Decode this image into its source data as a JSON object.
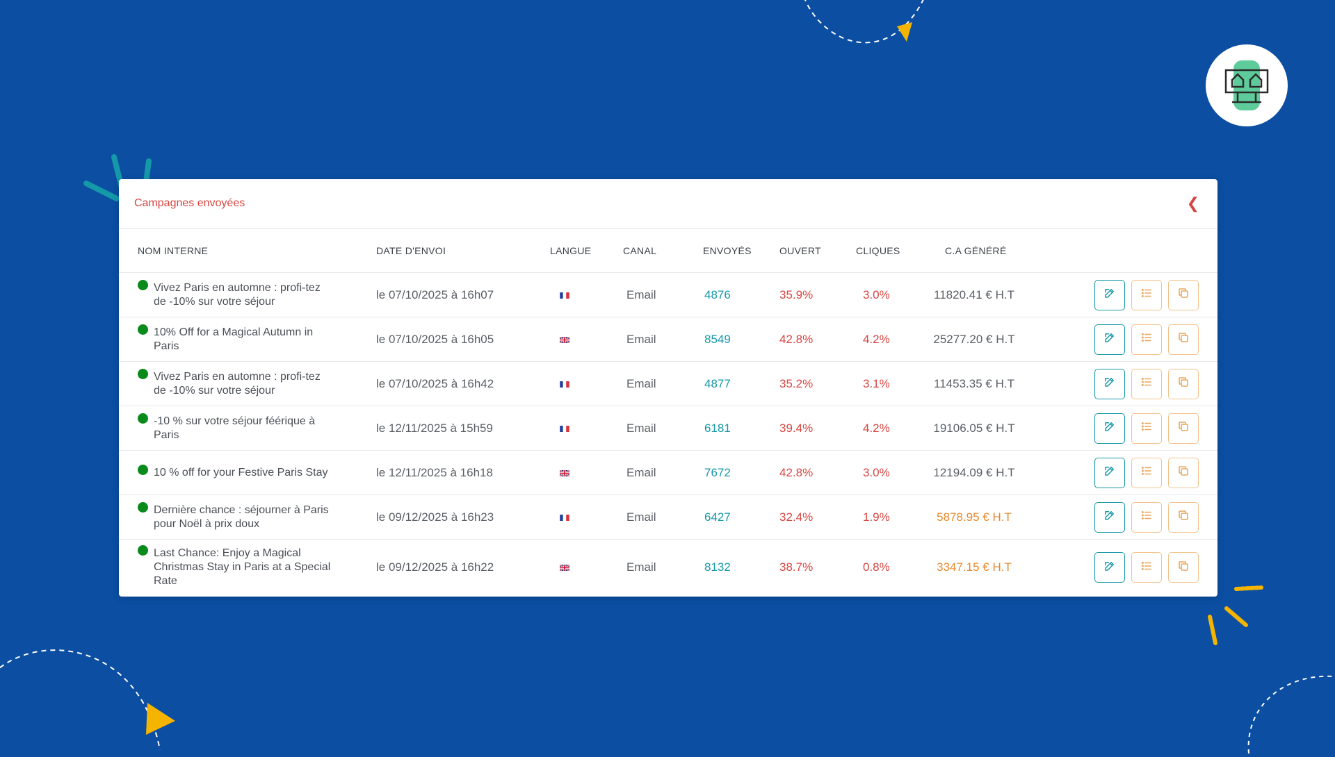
{
  "panel": {
    "title": "Campagnes envoyées",
    "collapse_icon": "chevron-left-icon"
  },
  "table": {
    "columns": [
      "NOM INTERNE",
      "DATE D'ENVOI",
      "LANGUE",
      "CANAL",
      "ENVOYÉS",
      "OUVERT",
      "CLIQUES",
      "C.A GÉNÉRÉ"
    ],
    "rows": [
      {
        "name": "Vivez Paris en automne : profi-tez de -10% sur votre séjour",
        "date": "le 07/10/2025 à 16h07",
        "lang": "fr",
        "canal": "Email",
        "envoyes": "4876",
        "ouvert": "35.9%",
        "cliques": "3.0%",
        "ca": "11820.41 € H.T",
        "ca_status": "normal"
      },
      {
        "name": "10% Off for a Magical Autumn in Paris",
        "date": "le 07/10/2025 à 16h05",
        "lang": "en",
        "canal": "Email",
        "envoyes": "8549",
        "ouvert": "42.8%",
        "cliques": "4.2%",
        "ca": "25277.20 € H.T",
        "ca_status": "normal"
      },
      {
        "name": "Vivez Paris en automne : profi-tez de -10% sur votre séjour",
        "date": "le 07/10/2025 à 16h42",
        "lang": "fr",
        "canal": "Email",
        "envoyes": "4877",
        "ouvert": "35.2%",
        "cliques": "3.1%",
        "ca": "11453.35 € H.T",
        "ca_status": "normal"
      },
      {
        "name": "-10 % sur votre séjour féérique à Paris",
        "date": "le 12/11/2025 à 15h59",
        "lang": "fr",
        "canal": "Email",
        "envoyes": "6181",
        "ouvert": "39.4%",
        "cliques": "4.2%",
        "ca": "19106.05 € H.T",
        "ca_status": "normal"
      },
      {
        "name": "10 % off for your Festive Paris Stay",
        "date": "le 12/11/2025 à 16h18",
        "lang": "en",
        "canal": "Email",
        "envoyes": "7672",
        "ouvert": "42.8%",
        "cliques": "3.0%",
        "ca": "12194.09 € H.T",
        "ca_status": "normal"
      },
      {
        "name": "Dernière chance : séjourner à Paris pour Noël à prix doux",
        "date": "le 09/12/2025 à 16h23",
        "lang": "fr",
        "canal": "Email",
        "envoyes": "6427",
        "ouvert": "32.4%",
        "cliques": "1.9%",
        "ca": "5878.95 € H.T",
        "ca_status": "low"
      },
      {
        "name": "Last Chance: Enjoy a Magical Christmas Stay in Paris at a Special Rate",
        "date": "le 09/12/2025 à 16h22",
        "lang": "en",
        "canal": "Email",
        "envoyes": "8132",
        "ouvert": "38.7%",
        "cliques": "0.8%",
        "ca": "3347.15 € H.T",
        "ca_status": "low"
      }
    ]
  },
  "row_actions": [
    {
      "icon": "edit-icon"
    },
    {
      "icon": "list-icon"
    },
    {
      "icon": "copy-icon"
    }
  ],
  "colors": {
    "background": "#0b4ea2",
    "title": "#d64541",
    "sent": "#1598a8",
    "open": "#d64541",
    "clicks": "#d64541",
    "revenue_normal": "#5a5f66",
    "revenue_low": "#e68a2e",
    "status_dot": "#0a8a1b",
    "accent_yellow": "#f5b400"
  },
  "logo": {
    "icon": "houses-logo-icon"
  }
}
